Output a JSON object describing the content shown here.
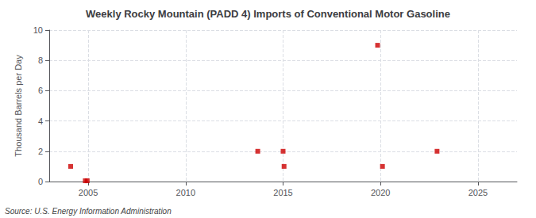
{
  "chart_data": {
    "type": "scatter",
    "title": "Weekly Rocky Mountain (PADD 4) Imports of Conventional Motor Gasoline",
    "ylabel": "Thousand Barrels per Day",
    "annotations": [
      "Source: U.S. Energy Information Administration"
    ],
    "x": [
      2004.1,
      2004.85,
      2004.95,
      2013.7,
      2015.0,
      2015.05,
      2019.85,
      2020.1,
      2022.9
    ],
    "values": [
      1.0,
      0.05,
      0.05,
      2.0,
      2.0,
      1.0,
      9.0,
      1.0,
      2.0
    ],
    "color": "#cc0000",
    "marker": "square",
    "xlim": [
      2003.0,
      2027.0
    ],
    "xticks": [
      2005,
      2010,
      2015,
      2020,
      2025
    ],
    "ylim": [
      0,
      10
    ],
    "yticks": [
      0,
      2,
      4,
      6,
      8,
      10
    ],
    "grid": true
  }
}
